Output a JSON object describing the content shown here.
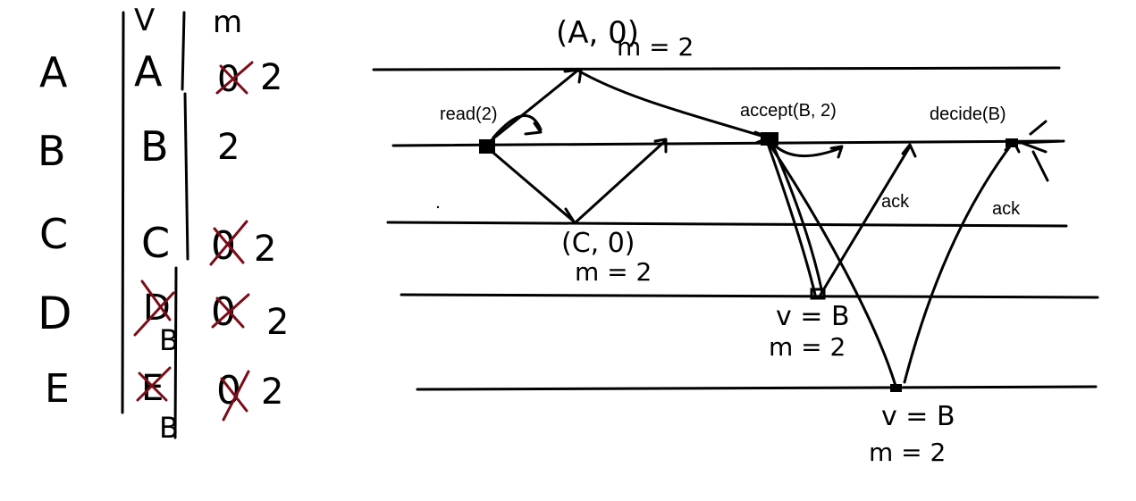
{
  "table": {
    "col_headers": [
      "V",
      "m"
    ],
    "rows": [
      {
        "node": "A",
        "v": "A",
        "v_new": "",
        "m_old": "0",
        "m_new": "2",
        "v_crossed": false,
        "m_crossed": true
      },
      {
        "node": "B",
        "v": "B",
        "v_new": "",
        "m_old": "",
        "m_new": "2",
        "v_crossed": false,
        "m_crossed": false
      },
      {
        "node": "C",
        "v": "C",
        "v_new": "",
        "m_old": "0",
        "m_new": "2",
        "v_crossed": false,
        "m_crossed": true
      },
      {
        "node": "D",
        "v": "D",
        "v_new": "B",
        "m_old": "0",
        "m_new": "2",
        "v_crossed": true,
        "m_crossed": true
      },
      {
        "node": "E",
        "v": "E",
        "v_new": "B",
        "m_old": "0",
        "m_new": "2",
        "v_crossed": true,
        "m_crossed": true
      }
    ]
  },
  "diagram": {
    "labels": {
      "read": "read(2)",
      "accept": "accept(B, 2)",
      "decide": "decide(B)",
      "ack_d": "ack",
      "ack_e": "ack",
      "reply_a_1": "(A, 0)",
      "reply_a_2": "m = 2",
      "reply_c_1": "(C, 0)",
      "reply_c_2": "m = 2",
      "state_d_1": "v = B",
      "state_d_2": "m = 2",
      "state_e_1": "v = B",
      "state_e_2": "m = 2"
    }
  },
  "colors": {
    "ink": "#000000",
    "cross": "#7a0d18",
    "background": "#ffffff"
  }
}
